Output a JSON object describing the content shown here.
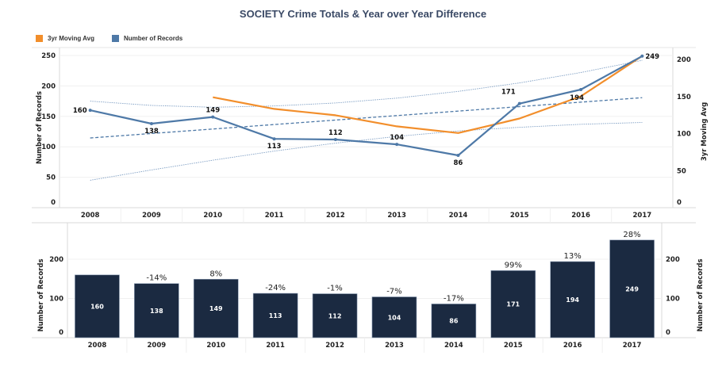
{
  "title": "SOCIETY Crime Totals & Year over Year Difference",
  "legend": [
    {
      "label": "3yr Moving Avg",
      "color": "#F28E2B"
    },
    {
      "label": "Number of Records",
      "color": "#4E79A7"
    }
  ],
  "chart_data": [
    {
      "type": "line",
      "title": "SOCIETY Crime Totals & Year over Year Difference",
      "categories": [
        "2008",
        "2009",
        "2010",
        "2011",
        "2012",
        "2013",
        "2014",
        "2015",
        "2016",
        "2017"
      ],
      "ylabel": "Number of Records",
      "ylabel_right": "3yr Moving Avg",
      "ylim": [
        0,
        250
      ],
      "ylim_right": [
        0,
        200
      ],
      "yticks": [
        "0",
        "50",
        "100",
        "150",
        "200",
        "250"
      ],
      "yticks_right": [
        "0",
        "50",
        "100",
        "150",
        "200"
      ],
      "legend_position": "top-left",
      "grid": true,
      "series": [
        {
          "name": "Number of Records",
          "axis": "left",
          "color": "#4E79A7",
          "values": [
            160,
            138,
            149,
            113,
            112,
            104,
            86,
            171,
            194,
            249
          ],
          "labels": [
            "160",
            "138",
            "149",
            "113",
            "112",
            "104",
            "86",
            "171",
            "194",
            "249"
          ]
        },
        {
          "name": "3yr Moving Avg",
          "axis": "right",
          "color": "#F28E2B",
          "values": [
            null,
            null,
            149.0,
            133.3,
            124.7,
            109.7,
            100.7,
            120.3,
            150.3,
            204.7
          ]
        }
      ],
      "trend": {
        "axis": "left",
        "line": [
          114.5,
          180.7
        ],
        "upper_band": [
          175,
          168,
          165,
          167,
          172,
          180,
          191,
          205,
          222,
          242
        ],
        "lower_band": [
          45,
          62,
          78,
          93,
          106,
          117,
          126,
          132,
          137,
          140
        ]
      }
    },
    {
      "type": "bar",
      "categories": [
        "2008",
        "2009",
        "2010",
        "2011",
        "2012",
        "2013",
        "2014",
        "2015",
        "2016",
        "2017"
      ],
      "values": [
        160,
        138,
        149,
        113,
        112,
        104,
        86,
        171,
        194,
        249
      ],
      "value_labels": [
        "160",
        "138",
        "149",
        "113",
        "112",
        "104",
        "86",
        "171",
        "194",
        "249"
      ],
      "pct_change": [
        "",
        "-14%",
        "8%",
        "-24%",
        "-1%",
        "-7%",
        "-17%",
        "99%",
        "13%",
        "28%"
      ],
      "ylabel": "Number of Records",
      "ylabel_right": "Number of Records",
      "ylim": [
        0,
        293
      ],
      "yticks": [
        "0",
        "100",
        "200"
      ],
      "color": "#1B2A41",
      "grid": true
    }
  ]
}
